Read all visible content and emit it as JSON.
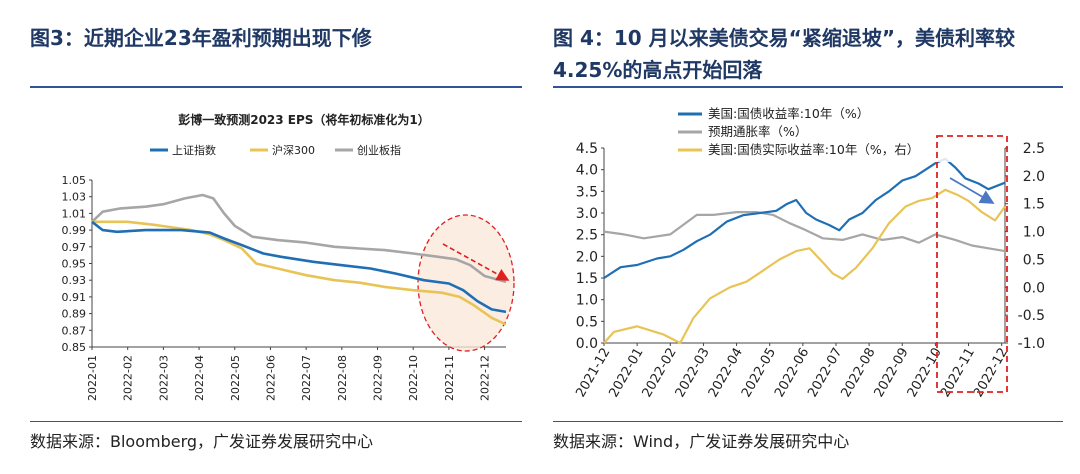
{
  "left_panel": {
    "heading": "图3：近期企业23年盈利预期出现下修",
    "source": "数据来源：Bloomberg，广发证券发展研究中心"
  },
  "right_panel": {
    "heading": "图 4：10 月以来美债交易“紧缩退坡”，美债利率较4.25%的高点开始回落",
    "source": "数据来源：Wind，广发证券发展研究中心"
  },
  "colors": {
    "blue": "#1f6fb5",
    "yellow": "#e8c457",
    "gray": "#a6a6a6",
    "heading": "#1f3864",
    "highlight": "#e02020"
  },
  "chart_data": [
    {
      "type": "line",
      "title": "彭博一致预测2023 EPS（将年初标准化为1）",
      "x_tick_labels": [
        "2022-01",
        "2022-02",
        "2022-03",
        "2022-04",
        "2022-05",
        "2022-06",
        "2022-07",
        "2022-08",
        "2022-09",
        "2022-10",
        "2022-11",
        "2022-12"
      ],
      "y_tick_labels": [
        "0.85",
        "0.87",
        "0.89",
        "0.91",
        "0.93",
        "0.95",
        "0.97",
        "0.99",
        "1.01",
        "1.03",
        "1.05"
      ],
      "ylim": [
        0.85,
        1.05
      ],
      "xlim": [
        0,
        11.6
      ],
      "legend_position": "top",
      "series": [
        {
          "name": "上证指数",
          "color": "#1f6fb5",
          "points": [
            [
              0,
              1.0
            ],
            [
              0.3,
              0.99
            ],
            [
              0.7,
              0.988
            ],
            [
              1.5,
              0.99
            ],
            [
              2.5,
              0.99
            ],
            [
              3.3,
              0.987
            ],
            [
              3.7,
              0.98
            ],
            [
              4.2,
              0.972
            ],
            [
              4.8,
              0.962
            ],
            [
              5.3,
              0.958
            ],
            [
              6.2,
              0.952
            ],
            [
              7,
              0.948
            ],
            [
              7.8,
              0.944
            ],
            [
              8.5,
              0.938
            ],
            [
              9.3,
              0.93
            ],
            [
              10,
              0.926
            ],
            [
              10.4,
              0.918
            ],
            [
              10.8,
              0.905
            ],
            [
              11.2,
              0.895
            ],
            [
              11.6,
              0.892
            ]
          ]
        },
        {
          "name": "沪深300",
          "color": "#e8c457",
          "points": [
            [
              0,
              1.0
            ],
            [
              0.4,
              1.0
            ],
            [
              1,
              1.0
            ],
            [
              1.8,
              0.996
            ],
            [
              2.8,
              0.99
            ],
            [
              3.3,
              0.985
            ],
            [
              3.7,
              0.978
            ],
            [
              4.2,
              0.968
            ],
            [
              4.6,
              0.95
            ],
            [
              5.2,
              0.944
            ],
            [
              6,
              0.936
            ],
            [
              6.8,
              0.93
            ],
            [
              7.5,
              0.927
            ],
            [
              8.2,
              0.922
            ],
            [
              9,
              0.918
            ],
            [
              9.8,
              0.915
            ],
            [
              10.3,
              0.91
            ],
            [
              10.7,
              0.9
            ],
            [
              11.2,
              0.885
            ],
            [
              11.6,
              0.877
            ]
          ]
        },
        {
          "name": "创业板指",
          "color": "#a6a6a6",
          "points": [
            [
              0,
              1.0
            ],
            [
              0.3,
              1.012
            ],
            [
              0.8,
              1.016
            ],
            [
              1.5,
              1.018
            ],
            [
              2,
              1.021
            ],
            [
              2.6,
              1.028
            ],
            [
              3.1,
              1.032
            ],
            [
              3.4,
              1.028
            ],
            [
              3.7,
              1.01
            ],
            [
              4,
              0.995
            ],
            [
              4.5,
              0.982
            ],
            [
              5.2,
              0.978
            ],
            [
              6,
              0.975
            ],
            [
              6.8,
              0.97
            ],
            [
              7.5,
              0.968
            ],
            [
              8.2,
              0.966
            ],
            [
              9,
              0.962
            ],
            [
              9.7,
              0.958
            ],
            [
              10.2,
              0.955
            ],
            [
              10.6,
              0.948
            ],
            [
              11,
              0.935
            ],
            [
              11.6,
              0.928
            ]
          ]
        }
      ],
      "annotation": "red dashed ellipse with downward arrow over 2022-11 to 2022-12"
    },
    {
      "type": "line",
      "title": "",
      "x_tick_labels": [
        "2021-12",
        "2022-01",
        "2022-02",
        "2022-03",
        "2022-04",
        "2022-05",
        "2022-06",
        "2022-07",
        "2022-08",
        "2022-09",
        "2022-10",
        "2022-11",
        "2022-12"
      ],
      "y_left_tick_labels": [
        "0.0",
        "0.5",
        "1.0",
        "1.5",
        "2.0",
        "2.5",
        "3.0",
        "3.5",
        "4.0",
        "4.5"
      ],
      "y_right_tick_labels": [
        "-1.0",
        "-0.5",
        "0.0",
        "0.5",
        "1.0",
        "1.5",
        "2.0",
        "2.5"
      ],
      "ylim_left": [
        0.0,
        4.5
      ],
      "ylim_right": [
        -1.0,
        2.5
      ],
      "xlim": [
        0,
        12.1
      ],
      "legend_position": "top-left",
      "series": [
        {
          "name": "美国:国债收益率:10年（%）",
          "color": "#1f6fb5",
          "axis": "left",
          "points": [
            [
              0,
              1.5
            ],
            [
              0.5,
              1.75
            ],
            [
              1,
              1.8
            ],
            [
              1.6,
              1.95
            ],
            [
              2,
              2.0
            ],
            [
              2.4,
              2.15
            ],
            [
              2.8,
              2.35
            ],
            [
              3.2,
              2.5
            ],
            [
              3.7,
              2.8
            ],
            [
              4.2,
              2.95
            ],
            [
              4.7,
              3.0
            ],
            [
              5.2,
              3.05
            ],
            [
              5.5,
              3.2
            ],
            [
              5.8,
              3.3
            ],
            [
              6.1,
              3.0
            ],
            [
              6.4,
              2.85
            ],
            [
              6.8,
              2.72
            ],
            [
              7.1,
              2.6
            ],
            [
              7.4,
              2.85
            ],
            [
              7.8,
              3.0
            ],
            [
              8.2,
              3.3
            ],
            [
              8.6,
              3.5
            ],
            [
              9,
              3.75
            ],
            [
              9.4,
              3.85
            ],
            [
              9.7,
              4.0
            ],
            [
              10,
              4.15
            ],
            [
              10.3,
              4.25
            ],
            [
              10.6,
              4.05
            ],
            [
              10.9,
              3.8
            ],
            [
              11.3,
              3.68
            ],
            [
              11.6,
              3.55
            ],
            [
              12.1,
              3.7
            ]
          ]
        },
        {
          "name": "预期通胀率（%）",
          "color": "#a6a6a6",
          "axis": "right",
          "points": [
            [
              0,
              1.0
            ],
            [
              0.6,
              0.95
            ],
            [
              1.2,
              0.88
            ],
            [
              2,
              0.95
            ],
            [
              2.8,
              1.3
            ],
            [
              3.3,
              1.3
            ],
            [
              4,
              1.35
            ],
            [
              4.6,
              1.35
            ],
            [
              5.1,
              1.3
            ],
            [
              5.6,
              1.15
            ],
            [
              6,
              1.05
            ],
            [
              6.6,
              0.88
            ],
            [
              7.2,
              0.85
            ],
            [
              7.8,
              0.95
            ],
            [
              8.4,
              0.85
            ],
            [
              9,
              0.9
            ],
            [
              9.5,
              0.8
            ],
            [
              10,
              0.95
            ],
            [
              10.6,
              0.85
            ],
            [
              11.1,
              0.75
            ],
            [
              11.6,
              0.7
            ],
            [
              12.1,
              0.65
            ]
          ]
        },
        {
          "name": "美国:国债实际收益率:10年（%，右）",
          "color": "#e8c457",
          "axis": "right",
          "points": [
            [
              0,
              -1.0
            ],
            [
              0.3,
              -0.8
            ],
            [
              1,
              -0.7
            ],
            [
              1.8,
              -0.85
            ],
            [
              2.3,
              -1.0
            ],
            [
              2.7,
              -0.55
            ],
            [
              3.2,
              -0.2
            ],
            [
              3.8,
              0.0
            ],
            [
              4.3,
              0.1
            ],
            [
              4.8,
              0.3
            ],
            [
              5.3,
              0.5
            ],
            [
              5.8,
              0.65
            ],
            [
              6.2,
              0.7
            ],
            [
              6.6,
              0.45
            ],
            [
              6.9,
              0.25
            ],
            [
              7.2,
              0.15
            ],
            [
              7.6,
              0.35
            ],
            [
              8.1,
              0.7
            ],
            [
              8.6,
              1.15
            ],
            [
              9.1,
              1.45
            ],
            [
              9.5,
              1.55
            ],
            [
              9.9,
              1.6
            ],
            [
              10.3,
              1.75
            ],
            [
              10.7,
              1.65
            ],
            [
              11,
              1.55
            ],
            [
              11.4,
              1.35
            ],
            [
              11.8,
              1.2
            ],
            [
              12.1,
              1.45
            ]
          ]
        }
      ],
      "annotation": "red dashed rectangle over 2022-10 to 2022-12 with downward arrow"
    }
  ]
}
